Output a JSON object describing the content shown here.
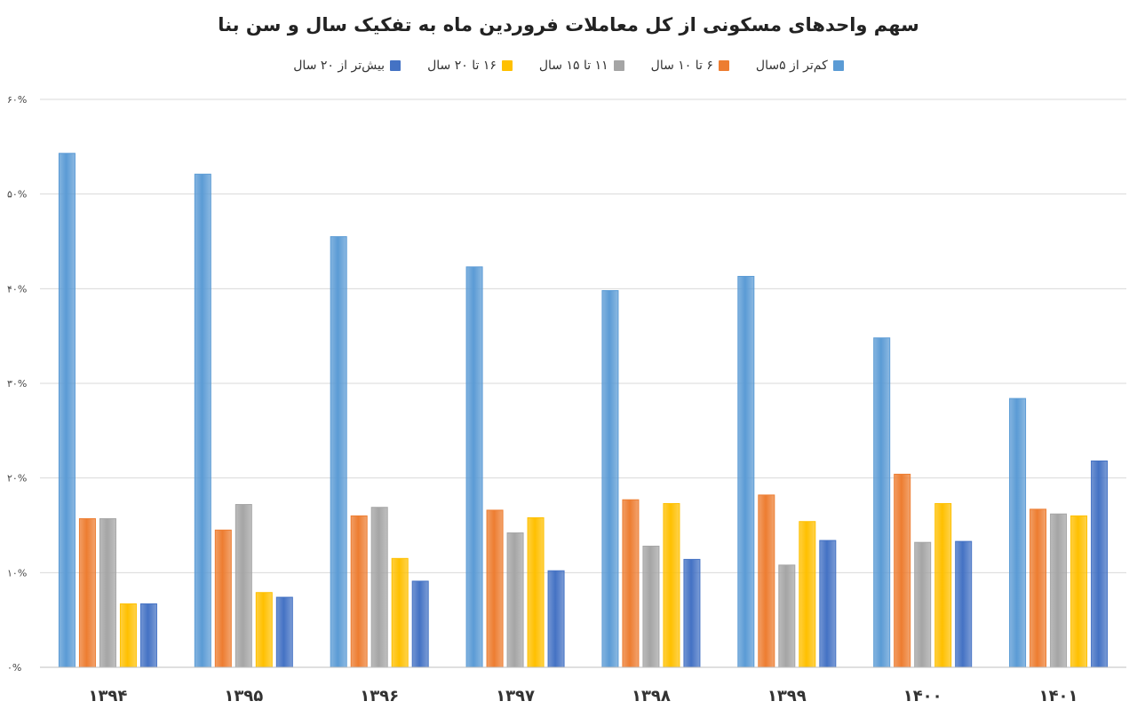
{
  "chart_data": {
    "type": "bar",
    "title": "سهم واحدهای مسکونی از کل معاملات فروردین ماه به تفکیک سال و سن بنا",
    "categories": [
      "۱۳۹۴",
      "۱۳۹۵",
      "۱۳۹۶",
      "۱۳۹۷",
      "۱۳۹۸",
      "۱۳۹۹",
      "۱۴۰۰",
      "۱۴۰۱"
    ],
    "series": [
      {
        "name": "کم‌تر از ۵سال",
        "color": "#5b9bd5",
        "values": [
          54.3,
          52.1,
          45.5,
          42.3,
          39.8,
          41.3,
          34.8,
          28.4
        ]
      },
      {
        "name": "۶ تا ۱۰ سال",
        "color": "#ed7d31",
        "values": [
          15.7,
          14.5,
          16.0,
          16.6,
          17.7,
          18.2,
          20.4,
          16.7
        ]
      },
      {
        "name": "۱۱ تا ۱۵ سال",
        "color": "#a5a5a5",
        "values": [
          15.7,
          17.2,
          16.9,
          14.2,
          12.8,
          10.8,
          13.2,
          16.2
        ]
      },
      {
        "name": "۱۶ تا ۲۰ سال",
        "color": "#ffc000",
        "values": [
          6.7,
          7.9,
          11.5,
          15.8,
          17.3,
          15.4,
          17.3,
          16.0
        ]
      },
      {
        "name": "بیش‌تر از ۲۰ سال",
        "color": "#4472c4",
        "values": [
          6.7,
          7.4,
          9.1,
          10.2,
          11.4,
          13.4,
          13.3,
          21.8
        ]
      }
    ],
    "ylim": [
      0,
      60
    ],
    "yticks": [
      "۰%",
      "۱۰%",
      "۲۰%",
      "۳۰%",
      "۴۰%",
      "۵۰%",
      "۶۰%"
    ],
    "grid": true,
    "legend_position": "top"
  }
}
